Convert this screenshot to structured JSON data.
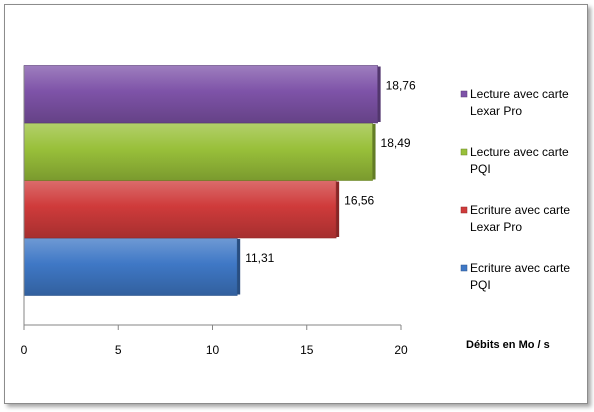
{
  "chart_data": {
    "type": "bar",
    "orientation": "horizontal",
    "categories": [
      "Ecriture avec carte PQI",
      "Ecriture avec carte Lexar Pro",
      "Lecture avec carte PQI",
      "Lecture avec carte Lexar Pro"
    ],
    "series": [
      {
        "name": "Ecriture avec carte PQI",
        "value": 11.31,
        "label": "11,31",
        "color": "#3f78c6",
        "legend_lines": [
          "Ecriture avec carte",
          "PQI"
        ]
      },
      {
        "name": "Ecriture avec carte Lexar Pro",
        "value": 16.56,
        "label": "16,56",
        "color": "#cf3b3b",
        "legend_lines": [
          "Ecriture avec carte",
          "Lexar Pro"
        ]
      },
      {
        "name": "Lecture avec carte PQI",
        "value": 18.49,
        "label": "18,49",
        "color": "#99c03a",
        "legend_lines": [
          "Lecture avec carte",
          "PQI"
        ]
      },
      {
        "name": "Lecture avec carte Lexar Pro",
        "value": 18.76,
        "label": "18,76",
        "color": "#7e53a8",
        "legend_lines": [
          "Lecture avec carte",
          "Lexar Pro"
        ]
      }
    ],
    "xlabel": "Débits en Mo  / s",
    "xlim": [
      0,
      20
    ],
    "xticks": [
      0,
      5,
      10,
      15,
      20
    ],
    "grid": false,
    "legend_position": "right"
  }
}
